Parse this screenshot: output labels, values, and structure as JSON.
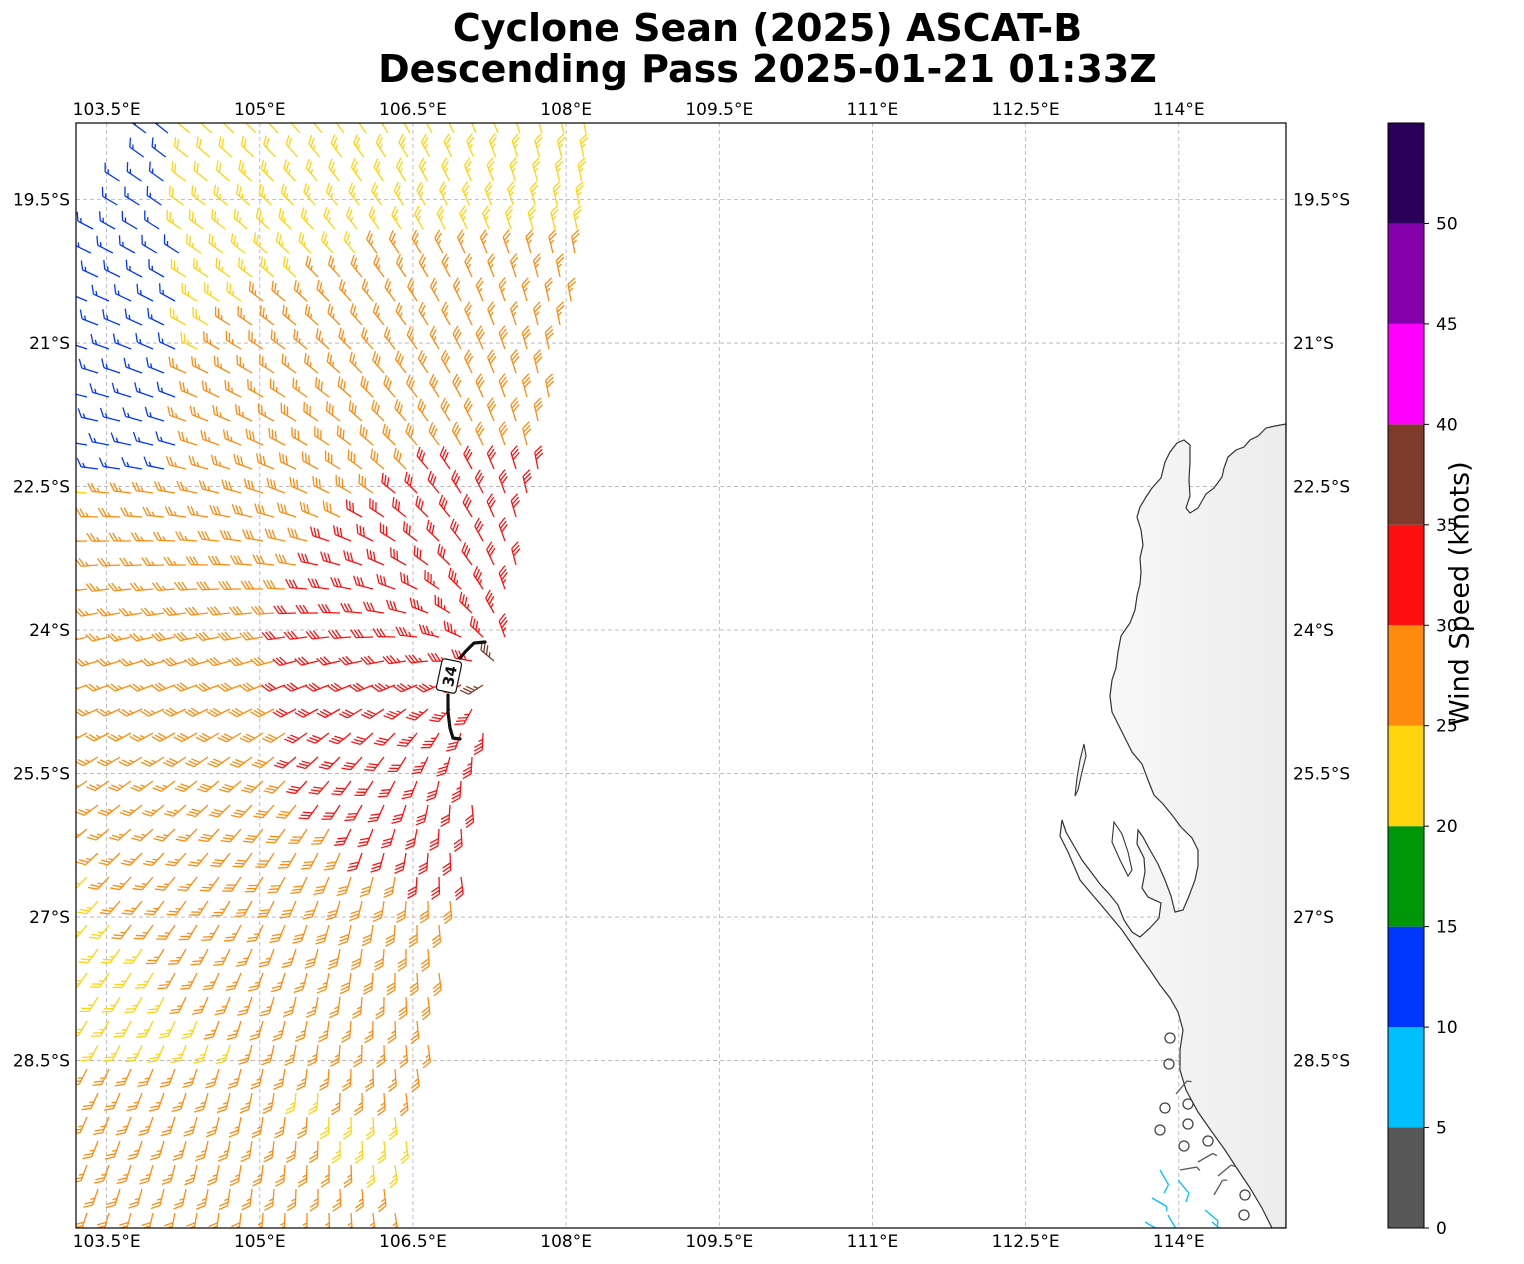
{
  "title": [
    "Cyclone Sean (2025) ASCAT-B",
    "Descending Pass 2025-01-21 01:33Z"
  ],
  "map": {
    "lon_range": [
      103.2,
      115.05
    ],
    "lat_range": [
      -30.25,
      -18.7
    ],
    "lon_ticks": [
      103.5,
      105,
      106.5,
      108,
      109.5,
      111,
      112.5,
      114
    ],
    "lon_tick_labels": [
      "103.5°E",
      "105°E",
      "106.5°E",
      "108°E",
      "109.5°E",
      "111°E",
      "112.5°E",
      "114°E"
    ],
    "lat_ticks": [
      -19.5,
      -21,
      -22.5,
      -24,
      -25.5,
      -27,
      -28.5
    ],
    "lat_tick_labels": [
      "19.5°S",
      "21°S",
      "22.5°S",
      "24°S",
      "25.5°S",
      "27°S",
      "28.5°S"
    ],
    "gridlines": true,
    "contour_label": "34",
    "contour_value_kt": 34,
    "land": "Western Australia coastline",
    "wind_barbs_colored_by_speed": true
  },
  "colorbar": {
    "label": "Wind Speed (knots)",
    "tick_labels": [
      "0",
      "5",
      "10",
      "15",
      "20",
      "25",
      "30",
      "35",
      "40",
      "45",
      "50"
    ],
    "bins": [
      {
        "from": 0,
        "to": 5,
        "color": "#585858"
      },
      {
        "from": 5,
        "to": 10,
        "color": "#00bfff"
      },
      {
        "from": 10,
        "to": 15,
        "color": "#0037ff"
      },
      {
        "from": 15,
        "to": 20,
        "color": "#00960a"
      },
      {
        "from": 20,
        "to": 25,
        "color": "#fed40e"
      },
      {
        "from": 25,
        "to": 30,
        "color": "#fe8b0e"
      },
      {
        "from": 30,
        "to": 35,
        "color": "#ff0f0f"
      },
      {
        "from": 35,
        "to": 40,
        "color": "#7f3b29"
      },
      {
        "from": 40,
        "to": 45,
        "color": "#ff00ff"
      },
      {
        "from": 45,
        "to": 50,
        "color": "#8400ab"
      },
      {
        "from": 50,
        "to": 55,
        "color": "#2a005b"
      }
    ]
  }
}
